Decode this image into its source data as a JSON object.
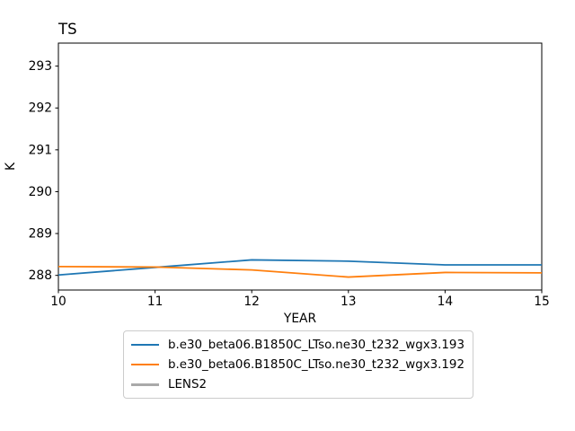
{
  "chart_data": {
    "type": "line",
    "title": "TS",
    "xlabel": "YEAR",
    "ylabel": "K",
    "x": [
      10,
      11,
      12,
      13,
      14,
      15
    ],
    "series": [
      {
        "name": "b.e30_beta06.B1850C_LTso.ne30_t232_wgx3.193",
        "color": "#1f77b4",
        "values": [
          288.01,
          288.19,
          288.37,
          288.34,
          288.25,
          288.25
        ]
      },
      {
        "name": "b.e30_beta06.B1850C_LTso.ne30_t232_wgx3.192",
        "color": "#ff7f0e",
        "values": [
          288.21,
          288.2,
          288.13,
          287.96,
          288.07,
          288.06
        ]
      },
      {
        "name": "LENS2",
        "color": "#a9a9a9",
        "values": []
      }
    ],
    "xticks": [
      10,
      11,
      12,
      13,
      14,
      15
    ],
    "yticks": [
      288,
      289,
      290,
      291,
      292,
      293
    ],
    "xlim": [
      10,
      15
    ],
    "ylim": [
      287.65,
      293.55
    ],
    "grid": false,
    "legend_position": "below-center",
    "frame_color": "#000000",
    "background_color": "#ffffff"
  }
}
